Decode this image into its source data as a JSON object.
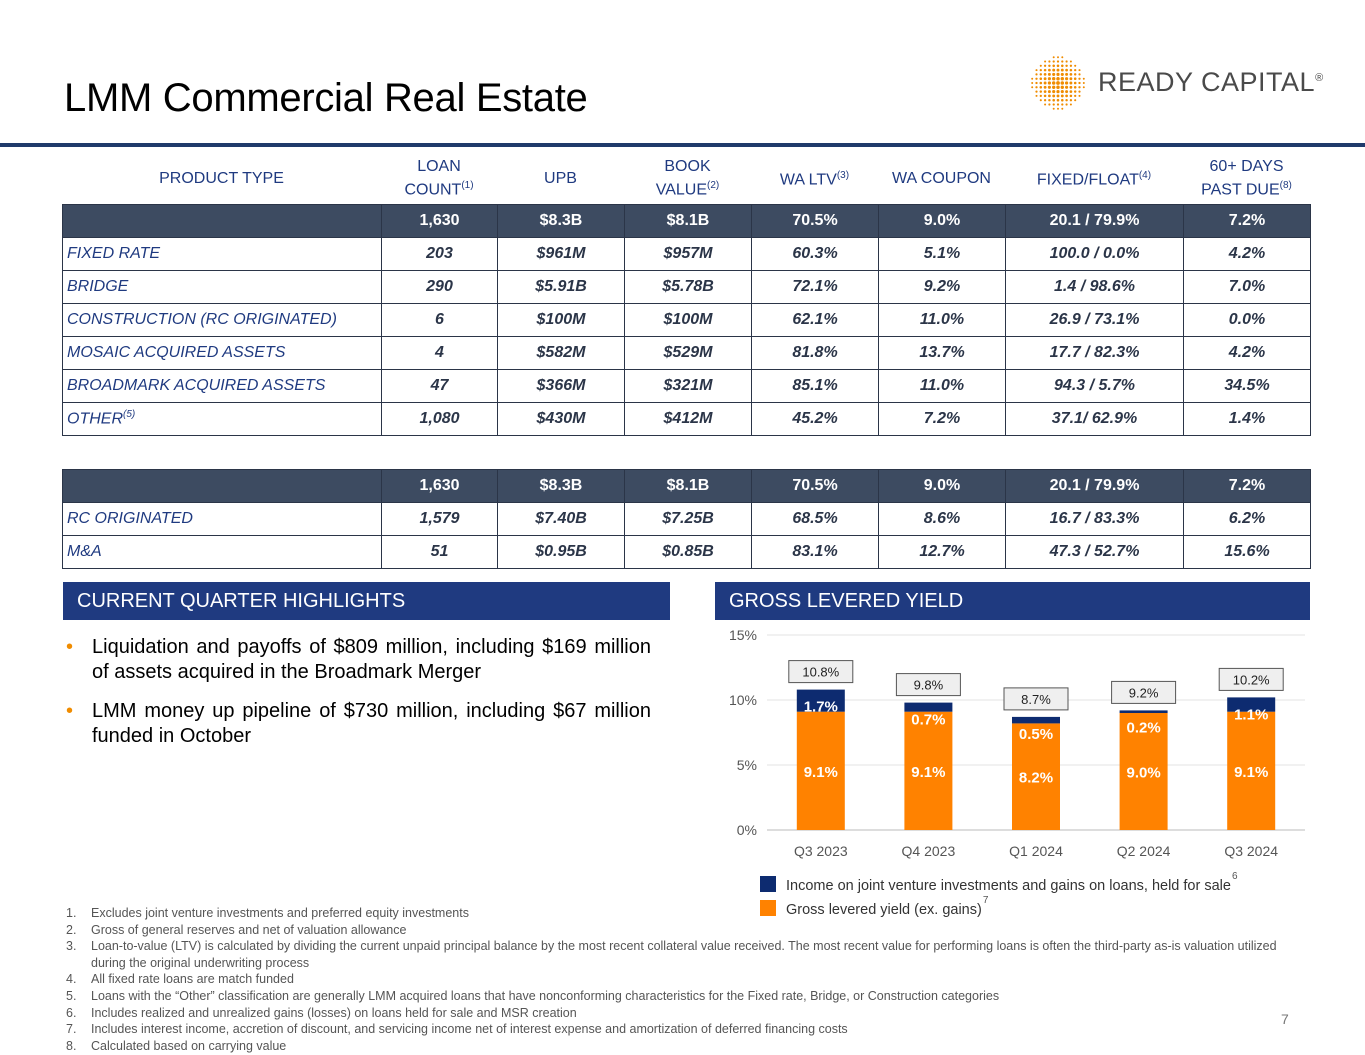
{
  "title": "LMM Commercial Real Estate",
  "logo": {
    "name": "READY CAPITAL",
    "reg": "®",
    "icon": "dot-grid-logo-icon"
  },
  "table": {
    "headers": [
      {
        "pre": "PRODUCT TYPE",
        "sup": "",
        "post": ""
      },
      {
        "pre": "LOAN COUNT",
        "sup": "(1)",
        "post": ""
      },
      {
        "pre": "UPB",
        "sup": "",
        "post": ""
      },
      {
        "pre": "BOOK VALUE",
        "sup": "(2)",
        "post": ""
      },
      {
        "pre": "WA LTV",
        "sup": "(3)",
        "post": ""
      },
      {
        "pre": "WA COUPON",
        "sup": "",
        "post": ""
      },
      {
        "pre": "FIXED/FLOAT",
        "sup": "(4)",
        "post": ""
      },
      {
        "pre": "60+ DAYS PAST DUE",
        "sup": "(8)",
        "post": ""
      }
    ],
    "section1": {
      "total": [
        "",
        "1,630",
        "$8.3B",
        "$8.1B",
        "70.5%",
        "9.0%",
        "20.1 / 79.9%",
        "7.2%"
      ],
      "rows": [
        {
          "type": "FIXED RATE",
          "sup": "",
          "cells": [
            "203",
            "$961M",
            "$957M",
            "60.3%",
            "5.1%",
            "100.0 / 0.0%",
            "4.2%"
          ]
        },
        {
          "type": "BRIDGE",
          "sup": "",
          "cells": [
            "290",
            "$5.91B",
            "$5.78B",
            "72.1%",
            "9.2%",
            "1.4 / 98.6%",
            "7.0%"
          ]
        },
        {
          "type": "CONSTRUCTION (RC ORIGINATED)",
          "sup": "",
          "cells": [
            "6",
            "$100M",
            "$100M",
            "62.1%",
            "11.0%",
            "26.9 / 73.1%",
            "0.0%"
          ]
        },
        {
          "type": "MOSAIC ACQUIRED ASSETS",
          "sup": "",
          "cells": [
            "4",
            "$582M",
            "$529M",
            "81.8%",
            "13.7%",
            "17.7 / 82.3%",
            "4.2%"
          ]
        },
        {
          "type": "BROADMARK ACQUIRED ASSETS",
          "sup": "",
          "cells": [
            "47",
            "$366M",
            "$321M",
            "85.1%",
            "11.0%",
            "94.3 / 5.7%",
            "34.5%"
          ]
        },
        {
          "type": "OTHER",
          "sup": "(5)",
          "cells": [
            "1,080",
            "$430M",
            "$412M",
            "45.2%",
            "7.2%",
            "37.1/ 62.9%",
            "1.4%"
          ]
        }
      ]
    },
    "section2": {
      "total": [
        "",
        "1,630",
        "$8.3B",
        "$8.1B",
        "70.5%",
        "9.0%",
        "20.1 / 79.9%",
        "7.2%"
      ],
      "rows": [
        {
          "type": "RC ORIGINATED",
          "sup": "",
          "cells": [
            "1,579",
            "$7.40B",
            "$7.25B",
            "68.5%",
            "8.6%",
            "16.7 / 83.3%",
            "6.2%"
          ]
        },
        {
          "type": "M&A",
          "sup": "",
          "cells": [
            "51",
            "$0.95B",
            "$0.85B",
            "83.1%",
            "12.7%",
            "47.3 / 52.7%",
            "15.6%"
          ]
        }
      ]
    }
  },
  "highlights": {
    "heading": "CURRENT QUARTER HIGHLIGHTS",
    "bullets": [
      "Liquidation and payoffs of $809 million, including $169 million of assets acquired in the Broadmark Merger",
      "LMM money up pipeline of $730 million, including $67 million funded in October"
    ]
  },
  "yield": {
    "heading": "GROSS LEVERED YIELD",
    "legend_color_income": "#0d2b70",
    "legend_color_gross": "#ff8200",
    "legend_sup_income": "6",
    "legend_sup_gross": "7"
  },
  "chart_data": {
    "type": "bar",
    "stacked": true,
    "categories": [
      "Q3 2023",
      "Q4 2023",
      "Q1 2024",
      "Q2 2024",
      "Q3 2024"
    ],
    "series": [
      {
        "name": "Gross levered yield (ex. gains)",
        "values": [
          9.1,
          9.1,
          8.2,
          9.0,
          9.1
        ],
        "labels": [
          "9.1%",
          "9.1%",
          "8.2%",
          "9.0%",
          "9.1%"
        ],
        "color": "#ff8200"
      },
      {
        "name": "Income on joint venture investments and gains on loans, held for sale",
        "values": [
          1.7,
          0.7,
          0.5,
          0.2,
          1.1
        ],
        "labels": [
          "1.7%",
          "0.7%",
          "0.5%",
          "0.2%",
          "1.1%"
        ],
        "color": "#0d2b70"
      }
    ],
    "totals": [
      "10.8%",
      "9.8%",
      "8.7%",
      "9.2%",
      "10.2%"
    ],
    "ylim": [
      0,
      15
    ],
    "yticks": [
      0,
      5,
      10,
      15
    ],
    "ytick_labels": [
      "0%",
      "5%",
      "10%",
      "15%"
    ],
    "grid": true,
    "legend_position": "bottom"
  },
  "footnotes": [
    {
      "n": "1.",
      "text": "Excludes joint venture investments and preferred equity investments"
    },
    {
      "n": "2.",
      "text": "Gross of general reserves and net of valuation allowance"
    },
    {
      "n": "3.",
      "text": "Loan-to-value (LTV) is calculated by dividing the current unpaid principal balance by the most recent collateral value received. The most recent value for performing loans is often the third-party as-is valuation utilized during the original underwriting process"
    },
    {
      "n": "4.",
      "text": "All fixed rate loans are match funded"
    },
    {
      "n": "5.",
      "text": "Loans with the “Other” classification are generally LMM acquired loans that have nonconforming characteristics for the Fixed rate, Bridge, or Construction categories"
    },
    {
      "n": "6.",
      "text": "Includes realized and unrealized gains (losses) on loans held for sale and MSR creation"
    },
    {
      "n": "7.",
      "text": "Includes interest income, accretion of discount, and servicing income net of interest expense and amortization of deferred financing costs"
    },
    {
      "n": "8.",
      "text": "Calculated based on carrying value"
    }
  ],
  "page_number": "7"
}
